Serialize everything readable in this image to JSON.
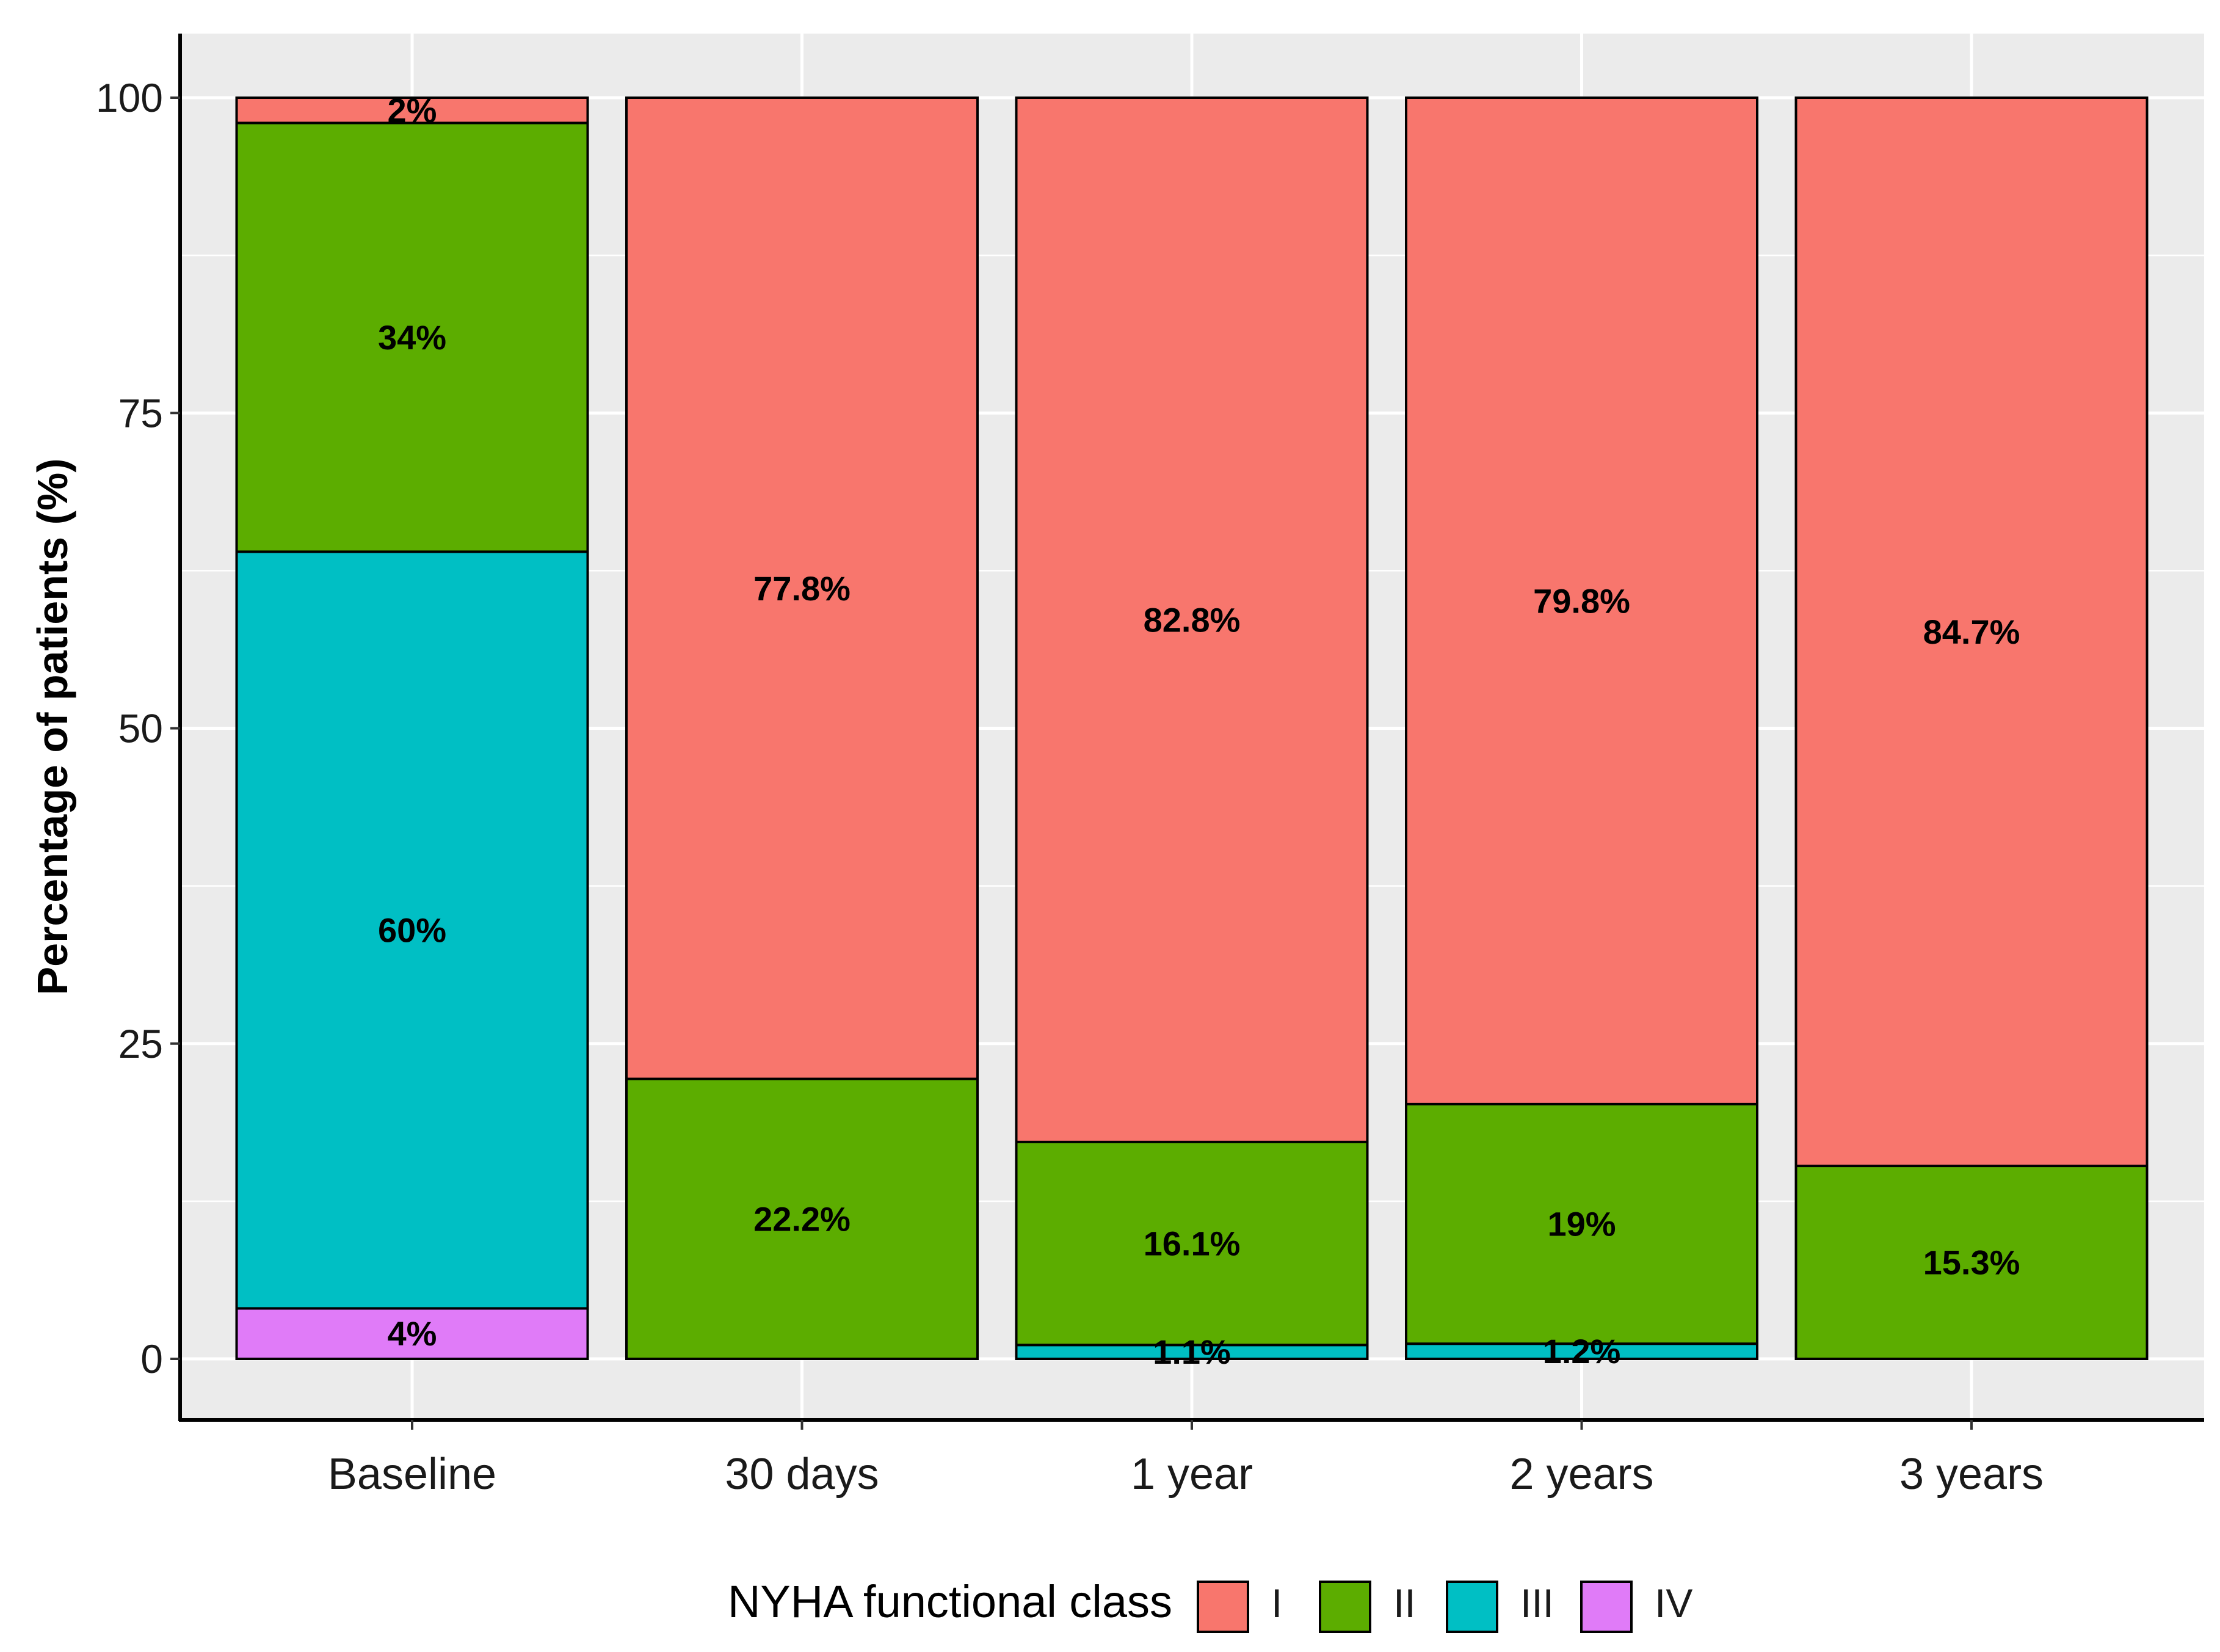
{
  "chart_data": {
    "type": "bar",
    "stacked": true,
    "title": "",
    "xlabel": "",
    "ylabel": "Percentage of patients (%)",
    "ylim": [
      -5,
      105
    ],
    "yticks": [
      0,
      25,
      50,
      75,
      100
    ],
    "categories": [
      "Baseline",
      "30 days",
      "1 year",
      "2 years",
      "3 years"
    ],
    "series": [
      {
        "name": "IV",
        "color": "#e07bf8",
        "values": [
          4,
          0,
          0,
          0,
          0
        ],
        "labels": [
          "4%",
          "",
          "",
          "",
          ""
        ]
      },
      {
        "name": "III",
        "color": "#00bfc4",
        "values": [
          60,
          0,
          1.1,
          1.2,
          0
        ],
        "labels": [
          "60%",
          "",
          "1.1%",
          "1.2%",
          ""
        ]
      },
      {
        "name": "II",
        "color": "#5cad00",
        "values": [
          34,
          22.2,
          16.1,
          19,
          15.3
        ],
        "labels": [
          "34%",
          "22.2%",
          "16.1%",
          "19%",
          "15.3%"
        ]
      },
      {
        "name": "I",
        "color": "#f8766d",
        "values": [
          2,
          77.8,
          82.8,
          79.8,
          84.7
        ],
        "labels": [
          "2%",
          "77.8%",
          "82.8%",
          "79.8%",
          "84.7%"
        ]
      }
    ],
    "legend": {
      "title": "NYHA functional class",
      "position": "bottom",
      "entries": [
        {
          "name": "I",
          "color": "#f8766d"
        },
        {
          "name": "II",
          "color": "#5cad00"
        },
        {
          "name": "III",
          "color": "#00bfc4"
        },
        {
          "name": "IV",
          "color": "#e07bf8"
        }
      ]
    },
    "panel_color": "#ebebeb",
    "grid_color": "#ffffff"
  }
}
